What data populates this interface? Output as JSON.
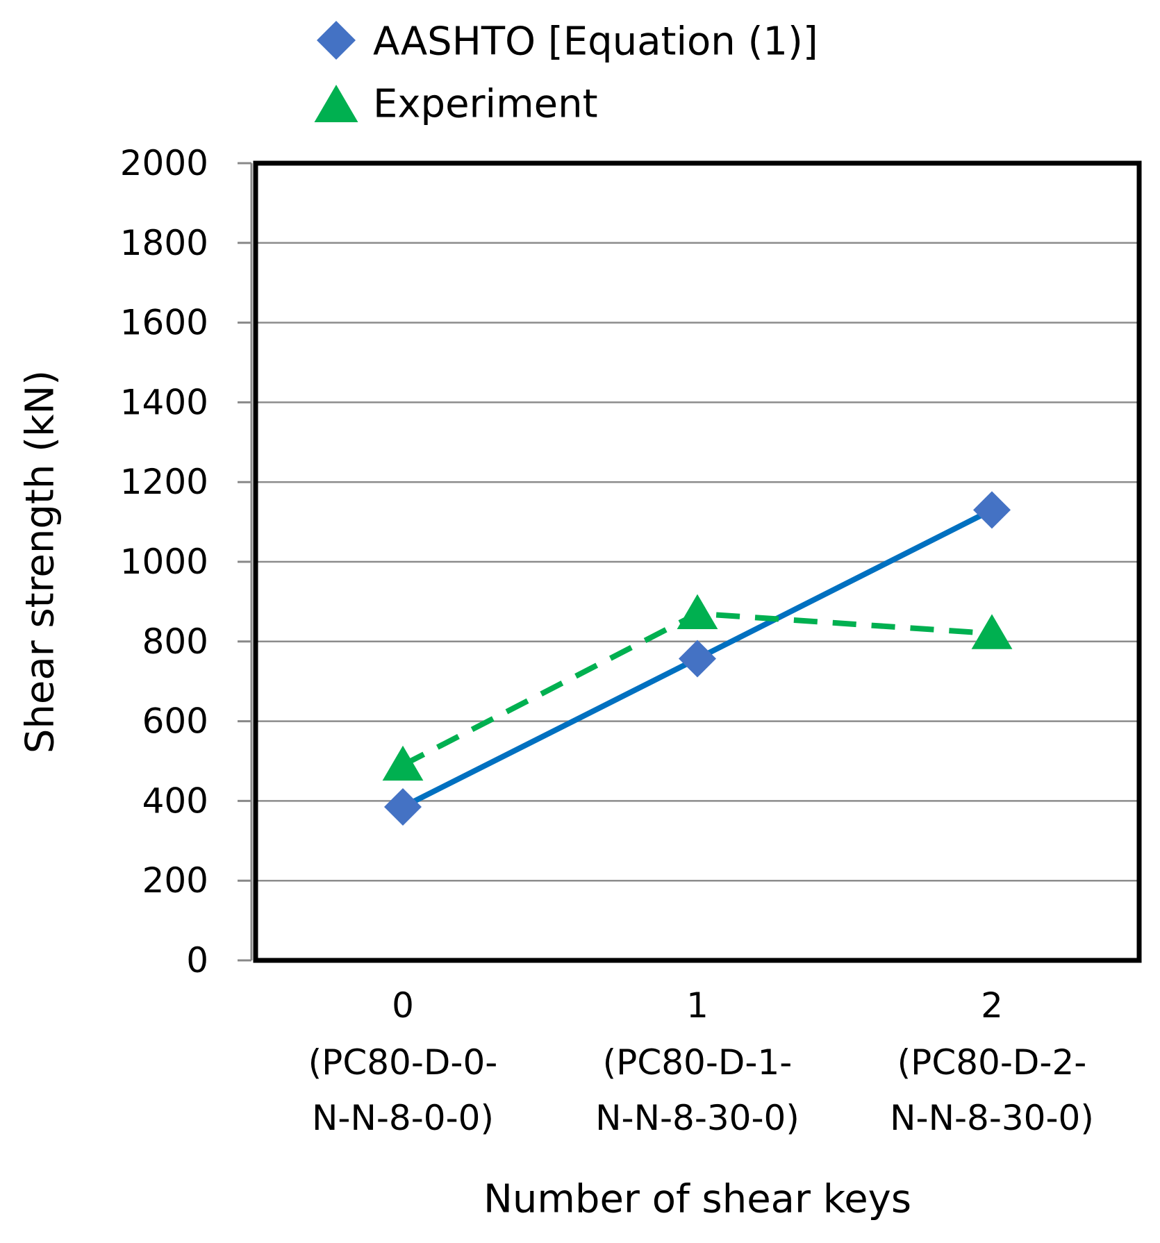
{
  "chart_data": {
    "type": "line",
    "title": "",
    "xlabel": "Number of shear keys",
    "ylabel": "Shear strength (kN)",
    "ylim": [
      0,
      2000
    ],
    "yticks": [
      "0",
      "200",
      "400",
      "600",
      "800",
      "1000",
      "1200",
      "1400",
      "1600",
      "1800",
      "2000"
    ],
    "ytick_values": [
      0,
      200,
      400,
      600,
      800,
      1000,
      1200,
      1400,
      1600,
      1800,
      2000
    ],
    "grid": true,
    "legend_position": "top",
    "categories": [
      {
        "value": "0",
        "line1": "(PC80-D-0-",
        "line2": "N-N-8-0-0)"
      },
      {
        "value": "1",
        "line1": "(PC80-D-1-",
        "line2": "N-N-8-30-0)"
      },
      {
        "value": "2",
        "line1": "(PC80-D-2-",
        "line2": "N-N-8-30-0)"
      }
    ],
    "series": [
      {
        "name": "AASHTO [Equation (1)]",
        "values": [
          385,
          757,
          1130
        ],
        "color": "#4472C4",
        "line_color": "#0070C0",
        "marker": "diamond",
        "line_style": "solid"
      },
      {
        "name": "Experiment",
        "values": [
          490,
          870,
          820
        ],
        "color": "#00B050",
        "line_color": "#00B050",
        "marker": "triangle",
        "line_style": "dashed"
      }
    ]
  }
}
